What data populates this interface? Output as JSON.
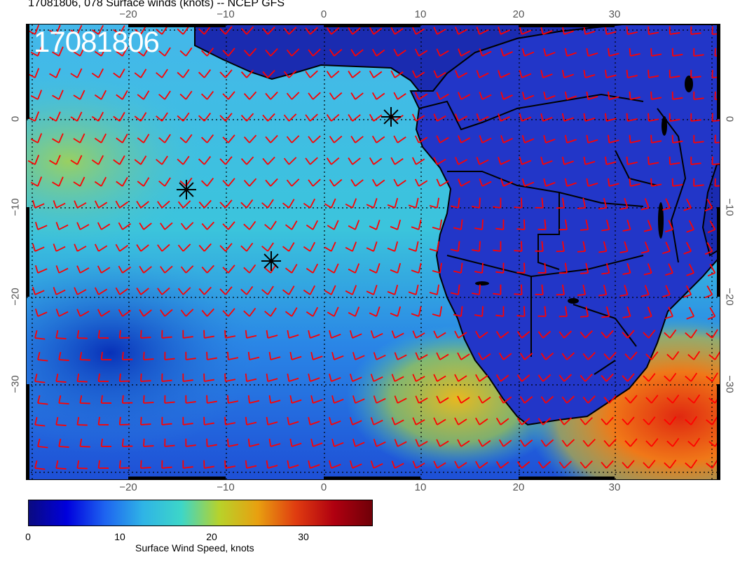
{
  "header": {
    "title": "17081806, 078 Surface winds (knots) -- NCEP GFS"
  },
  "map": {
    "timestamp_label": "17081806",
    "lon_labels": [
      "−20",
      "−10",
      "0",
      "10",
      "20",
      "30"
    ],
    "lat_labels": [
      "0",
      "−10",
      "−20",
      "−30"
    ],
    "barb_color": "#ff0000",
    "coast_color": "#000000",
    "markers": [
      {
        "name": "marker-storm-1",
        "symbol": "asterisk"
      },
      {
        "name": "marker-storm-2",
        "symbol": "asterisk"
      },
      {
        "name": "marker-storm-3",
        "symbol": "asterisk"
      }
    ]
  },
  "colorbar": {
    "title": "Surface Wind Speed, knots",
    "tick_labels": [
      "0",
      "10",
      "20",
      "30"
    ],
    "colors": [
      "#0a0a80",
      "#0000dd",
      "#1e64f0",
      "#2fb4e6",
      "#3dd6c8",
      "#b8d22a",
      "#e8a010",
      "#e03c10",
      "#b00010",
      "#700008"
    ]
  }
}
